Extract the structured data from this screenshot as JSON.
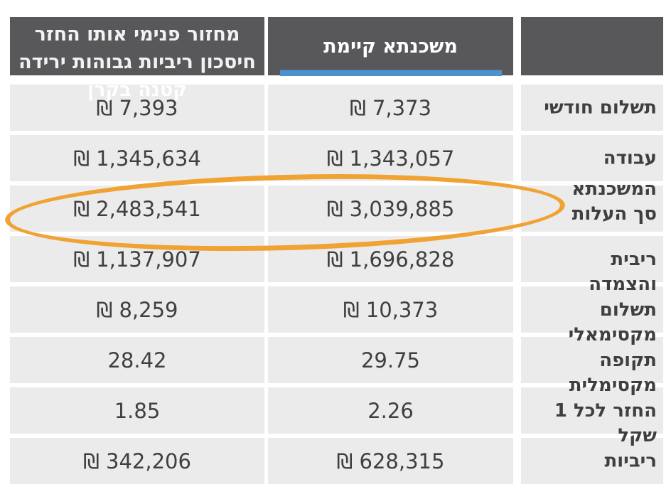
{
  "table": {
    "columns": {
      "label": {
        "header": ""
      },
      "existing": {
        "header": "משכנתא קיימת"
      },
      "refinance": {
        "header": "מחזור פנימי אותו החזר\nחיסכון ריביות גבוהות ירידה\nקטנה בקרן"
      }
    },
    "rows": [
      {
        "label": "תשלום חודשי",
        "existing": "₪ 7,373",
        "refinance": "₪ 7,393"
      },
      {
        "label": "עבודה",
        "existing": "₪ 1,343,057",
        "refinance": "₪ 1,345,634"
      },
      {
        "label": "המשכנתא\nסך העלות",
        "existing": "₪ 3,039,885",
        "refinance": "₪ 2,483,541"
      },
      {
        "label": "ריבית\nוהצמדה",
        "existing": "₪ 1,696,828",
        "refinance": "₪ 1,137,907"
      },
      {
        "label": "תשלום\nמקסימאלי",
        "existing": "₪ 10,373",
        "refinance": "₪ 8,259"
      },
      {
        "label": "תקופה\nמקסימלית",
        "existing": "29.75",
        "refinance": "28.42"
      },
      {
        "label": "החזר לכל 1\nשקל",
        "existing": "2.26",
        "refinance": "1.85"
      },
      {
        "label": "ריביות",
        "existing": "₪ 628,315",
        "refinance": "₪ 342,206"
      }
    ]
  },
  "annotation": {
    "shape": "ellipse",
    "highlighted_values": [
      "₪ 3,039,885",
      "₪ 2,483,541"
    ]
  },
  "colors": {
    "header_bg": "#58585A",
    "cell_bg": "#EBEBEB",
    "value_text": "#3F3F3F",
    "header_text": "#FFFFFF",
    "accent_blue": "#4E91CB",
    "annotation_orange": "#F0A233"
  }
}
